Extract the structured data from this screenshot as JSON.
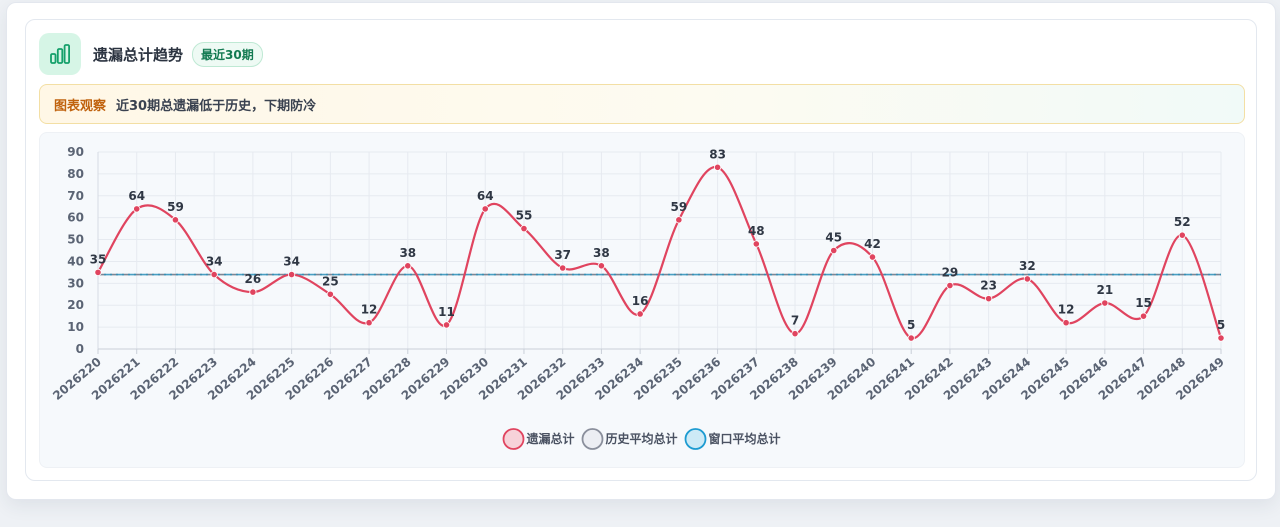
{
  "header": {
    "title": "遗漏总计趋势",
    "badge": "最近30期",
    "icon": "bar-chart-icon"
  },
  "notice": {
    "tag": "图表观察",
    "text": "近30期总遗漏低于历史，下期防冷"
  },
  "chart_data": {
    "type": "line",
    "categories": [
      "2026220",
      "2026221",
      "2026222",
      "2026223",
      "2026224",
      "2026225",
      "2026226",
      "2026227",
      "2026228",
      "2026229",
      "2026230",
      "2026231",
      "2026232",
      "2026233",
      "2026234",
      "2026235",
      "2026236",
      "2026237",
      "2026238",
      "2026239",
      "2026240",
      "2026241",
      "2026242",
      "2026243",
      "2026244",
      "2026245",
      "2026246",
      "2026247",
      "2026248",
      "2026249"
    ],
    "series": [
      {
        "name": "遗漏总计",
        "color": "#e0445f",
        "values": [
          35,
          64,
          59,
          34,
          26,
          34,
          25,
          12,
          38,
          11,
          64,
          55,
          37,
          38,
          16,
          59,
          83,
          48,
          7,
          45,
          42,
          5,
          29,
          23,
          32,
          12,
          21,
          15,
          52,
          5
        ]
      },
      {
        "name": "历史平均总计",
        "color": "#8a8f9c",
        "values": [
          34,
          34,
          34,
          34,
          34,
          34,
          34,
          34,
          34,
          34,
          34,
          34,
          34,
          34,
          34,
          34,
          34,
          34,
          34,
          34,
          34,
          34,
          34,
          34,
          34,
          34,
          34,
          34,
          34,
          34
        ]
      },
      {
        "name": "窗口平均总计",
        "color": "#1d9bd1",
        "values": [
          34,
          34,
          34,
          34,
          34,
          34,
          34,
          34,
          34,
          34,
          34,
          34,
          34,
          34,
          34,
          34,
          34,
          34,
          34,
          34,
          34,
          34,
          34,
          34,
          34,
          34,
          34,
          34,
          34,
          34
        ]
      }
    ],
    "ylim": [
      0,
      90
    ],
    "yticks": [
      0,
      10,
      20,
      30,
      40,
      50,
      60,
      70,
      80,
      90
    ],
    "grid": true,
    "legend_position": "bottom"
  }
}
